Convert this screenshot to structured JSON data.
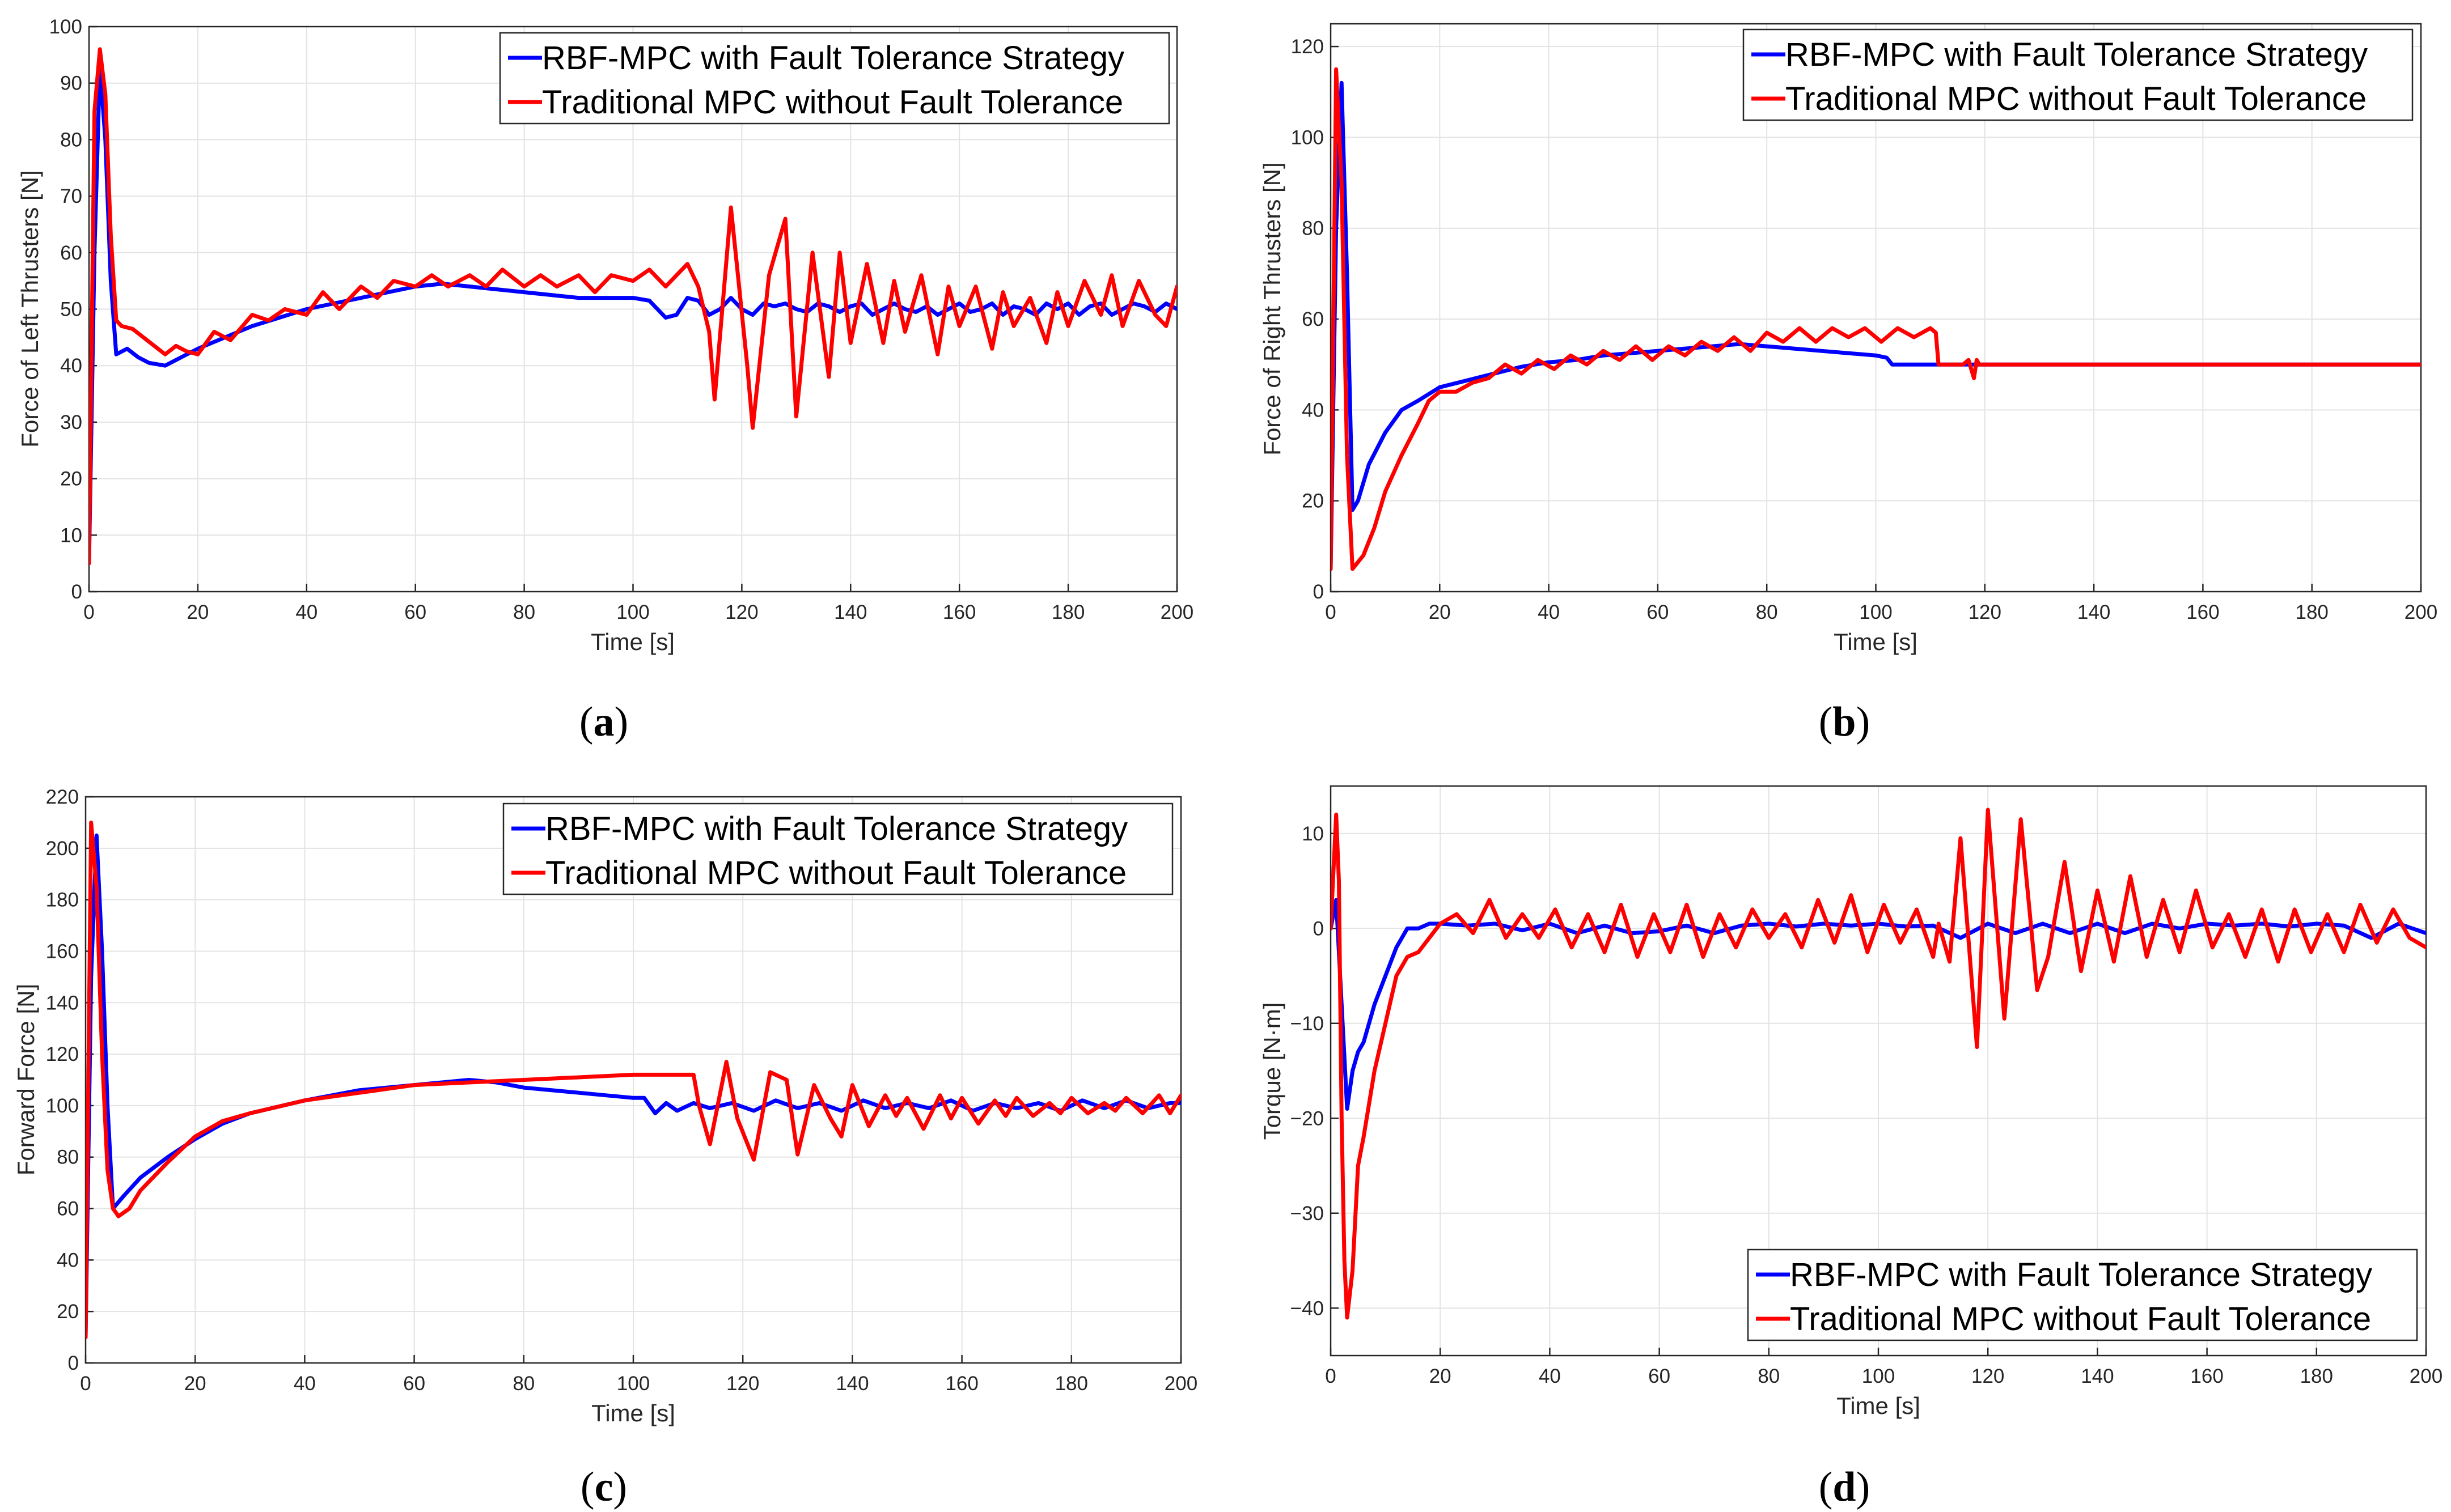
{
  "figure": {
    "background": "#ffffff"
  },
  "chart_data": [
    {
      "id": "a",
      "type": "line",
      "caption": "a",
      "xlabel": "Time [s]",
      "ylabel": "Force of Left Thrusters [N]",
      "xlim": [
        0,
        200
      ],
      "ylim": [
        0,
        100
      ],
      "xticks": [
        0,
        20,
        40,
        60,
        80,
        100,
        120,
        140,
        160,
        180,
        200
      ],
      "yticks": [
        0,
        10,
        20,
        30,
        40,
        50,
        60,
        70,
        80,
        90,
        100
      ],
      "grid": true,
      "legend_position": "top-right",
      "series": [
        {
          "name": "RBF-MPC with Fault Tolerance Strategy",
          "color": "#0000ff",
          "x": [
            0,
            1,
            2,
            3,
            4,
            5,
            7,
            9,
            11,
            14,
            17,
            20,
            25,
            30,
            35,
            40,
            45,
            50,
            55,
            60,
            65,
            70,
            75,
            80,
            85,
            90,
            95,
            100,
            103,
            106,
            108,
            110,
            112,
            114,
            116,
            118,
            120,
            122,
            124,
            126,
            128,
            130,
            132,
            134,
            136,
            138,
            140,
            142,
            144,
            146,
            148,
            150,
            152,
            154,
            156,
            158,
            160,
            162,
            164,
            166,
            168,
            170,
            172,
            174,
            176,
            178,
            180,
            182,
            184,
            186,
            188,
            190,
            192,
            194,
            196,
            198,
            200
          ],
          "y": [
            5,
            60,
            93,
            80,
            55,
            42,
            43,
            41.5,
            40.5,
            40,
            41.5,
            43,
            45,
            47,
            48.5,
            50,
            51,
            52,
            53,
            54,
            54.5,
            54,
            53.5,
            53,
            52.5,
            52,
            52,
            52,
            51.5,
            48.5,
            49,
            52,
            51.5,
            49,
            50,
            52,
            50,
            49,
            51,
            50.5,
            51,
            50,
            49.5,
            51,
            50.5,
            49.5,
            50.5,
            51,
            49,
            50,
            51,
            50,
            49.5,
            50.5,
            49,
            50,
            51,
            49.5,
            50,
            51,
            49,
            50.5,
            50,
            49,
            51,
            50,
            51,
            49,
            50.5,
            51,
            49,
            50,
            51,
            50.5,
            49.5,
            51,
            50
          ]
        },
        {
          "name": "Traditional MPC without Fault Tolerance",
          "color": "#ff0000",
          "x": [
            0,
            1,
            2,
            3,
            4,
            5,
            6,
            8,
            10,
            12,
            14,
            16,
            18,
            20,
            23,
            26,
            30,
            33,
            36,
            40,
            43,
            46,
            50,
            53,
            56,
            60,
            63,
            66,
            70,
            73,
            76,
            80,
            83,
            86,
            90,
            93,
            96,
            100,
            103,
            106,
            110,
            112,
            114,
            115,
            118,
            121,
            122,
            125,
            128,
            130,
            133,
            136,
            138,
            140,
            143,
            146,
            148,
            150,
            153,
            156,
            158,
            160,
            163,
            166,
            168,
            170,
            173,
            176,
            178,
            180,
            183,
            186,
            188,
            190,
            193,
            196,
            198,
            200
          ],
          "y": [
            5,
            85,
            96,
            88,
            63,
            48,
            47,
            46.5,
            45,
            43.5,
            42,
            43.5,
            42.5,
            42,
            46,
            44.5,
            49,
            48,
            50,
            49,
            53,
            50,
            54,
            52,
            55,
            54,
            56,
            54,
            56,
            54,
            57,
            54,
            56,
            54,
            56,
            53,
            56,
            55,
            57,
            54,
            58,
            54,
            46,
            34,
            68,
            40,
            29,
            56,
            66,
            31,
            60,
            38,
            60,
            44,
            58,
            44,
            55,
            46,
            56,
            42,
            54,
            47,
            54,
            43,
            53,
            47,
            52,
            44,
            53,
            47,
            55,
            49,
            56,
            47,
            55,
            49,
            47,
            54
          ]
        }
      ]
    },
    {
      "id": "b",
      "type": "line",
      "caption": "b",
      "xlabel": "Time [s]",
      "ylabel": "Force of Right Thrusters [N]",
      "xlim": [
        0,
        200
      ],
      "ylim": [
        0,
        125
      ],
      "xticks": [
        0,
        20,
        40,
        60,
        80,
        100,
        120,
        140,
        160,
        180,
        200
      ],
      "yticks": [
        0,
        20,
        40,
        60,
        80,
        100,
        120
      ],
      "grid": true,
      "legend_position": "top-right",
      "series": [
        {
          "name": "RBF-MPC with Fault Tolerance Strategy",
          "color": "#0000ff",
          "x": [
            0,
            1,
            2,
            3,
            4,
            5,
            7,
            10,
            13,
            16,
            20,
            25,
            30,
            35,
            40,
            45,
            50,
            55,
            60,
            65,
            70,
            75,
            80,
            85,
            90,
            95,
            100,
            102,
            103,
            105,
            110,
            112,
            112.5,
            200
          ],
          "y": [
            5,
            80,
            112,
            70,
            18,
            20,
            28,
            35,
            40,
            42,
            45,
            46.5,
            48,
            49.5,
            50.5,
            51,
            52,
            52.5,
            53,
            53.5,
            54,
            54.5,
            54,
            53.5,
            53,
            52.5,
            52,
            51.5,
            50,
            50,
            50,
            50,
            50,
            50
          ]
        },
        {
          "name": "Traditional MPC without Fault Tolerance",
          "color": "#ff0000",
          "x": [
            0,
            1,
            2,
            3,
            4,
            6,
            8,
            10,
            13,
            16,
            18,
            20,
            23,
            26,
            29,
            32,
            35,
            38,
            41,
            44,
            47,
            50,
            53,
            56,
            59,
            62,
            65,
            68,
            71,
            74,
            77,
            80,
            83,
            86,
            89,
            92,
            95,
            98,
            101,
            104,
            107,
            110,
            111,
            111.5,
            112,
            116,
            117,
            118,
            118.5,
            119,
            200
          ],
          "y": [
            5,
            115,
            90,
            30,
            5,
            8,
            14,
            22,
            30,
            37,
            42,
            44,
            44,
            46,
            47,
            50,
            48,
            51,
            49,
            52,
            50,
            53,
            51,
            54,
            51,
            54,
            52,
            55,
            53,
            56,
            53,
            57,
            55,
            58,
            55,
            58,
            56,
            58,
            55,
            58,
            56,
            58,
            57,
            50,
            50,
            50,
            51,
            47,
            51,
            50,
            50
          ]
        }
      ]
    },
    {
      "id": "c",
      "type": "line",
      "caption": "c",
      "xlabel": "Time [s]",
      "ylabel": "Forward Force [N]",
      "xlim": [
        0,
        200
      ],
      "ylim": [
        0,
        220
      ],
      "xticks": [
        0,
        20,
        40,
        60,
        80,
        100,
        120,
        140,
        160,
        180,
        200
      ],
      "yticks": [
        0,
        20,
        40,
        60,
        80,
        100,
        120,
        140,
        160,
        180,
        200,
        220
      ],
      "grid": true,
      "legend_position": "top-right",
      "series": [
        {
          "name": "RBF-MPC with Fault Tolerance Strategy",
          "color": "#0000ff",
          "x": [
            0,
            1,
            2,
            3,
            4,
            5,
            7,
            10,
            15,
            20,
            25,
            30,
            40,
            50,
            60,
            70,
            75,
            80,
            90,
            100,
            102,
            104,
            106,
            108,
            111,
            114,
            118,
            122,
            126,
            130,
            134,
            138,
            142,
            146,
            150,
            154,
            158,
            162,
            166,
            170,
            174,
            178,
            182,
            186,
            190,
            194,
            198,
            200
          ],
          "y": [
            10,
            150,
            205,
            160,
            100,
            60,
            65,
            72,
            80,
            87,
            93,
            97,
            102,
            106,
            108,
            110,
            109,
            107,
            105,
            103,
            103,
            97,
            101,
            98,
            101,
            99,
            101,
            98,
            102,
            99,
            101,
            98,
            102,
            99,
            101,
            99,
            102,
            98,
            101,
            99,
            101,
            98,
            102,
            99,
            102,
            99,
            101,
            101
          ]
        },
        {
          "name": "Traditional MPC without Fault Tolerance",
          "color": "#ff0000",
          "x": [
            0,
            1,
            2,
            3,
            4,
            5,
            6,
            8,
            10,
            15,
            20,
            25,
            30,
            40,
            50,
            60,
            70,
            80,
            90,
            100,
            105,
            111,
            112,
            114,
            117,
            119,
            122,
            125,
            128,
            130,
            133,
            136,
            138,
            140,
            143,
            146,
            148,
            150,
            153,
            156,
            158,
            160,
            163,
            166,
            168,
            170,
            173,
            176,
            178,
            180,
            183,
            186,
            188,
            190,
            193,
            196,
            198,
            200
          ],
          "y": [
            10,
            210,
            185,
            120,
            75,
            60,
            57,
            60,
            67,
            78,
            88,
            94,
            97,
            102,
            105,
            108,
            109,
            110,
            111,
            112,
            112,
            112,
            100,
            85,
            117,
            95,
            79,
            113,
            110,
            81,
            108,
            95,
            88,
            108,
            92,
            104,
            96,
            103,
            91,
            104,
            95,
            103,
            93,
            102,
            96,
            103,
            96,
            101,
            97,
            103,
            97,
            101,
            98,
            103,
            97,
            104,
            97,
            104
          ]
        }
      ]
    },
    {
      "id": "d",
      "type": "line",
      "caption": "d",
      "xlabel": "Time [s]",
      "ylabel": "Torque [N·m]",
      "xlim": [
        0,
        200
      ],
      "ylim": [
        -45,
        15
      ],
      "xticks": [
        0,
        20,
        40,
        60,
        80,
        100,
        120,
        140,
        160,
        180,
        200
      ],
      "yticks": [
        -40,
        -30,
        -20,
        -10,
        0,
        10
      ],
      "grid": true,
      "legend_position": "bottom-right",
      "series": [
        {
          "name": "RBF-MPC with Fault Tolerance Strategy",
          "color": "#0000ff",
          "x": [
            0,
            1,
            2,
            3,
            4,
            5,
            6,
            8,
            10,
            12,
            14,
            16,
            18,
            20,
            25,
            30,
            35,
            40,
            45,
            50,
            55,
            60,
            65,
            70,
            75,
            80,
            85,
            90,
            95,
            100,
            105,
            110,
            115,
            120,
            125,
            130,
            135,
            140,
            145,
            150,
            155,
            160,
            165,
            170,
            175,
            180,
            185,
            190,
            195,
            200
          ],
          "y": [
            0,
            3,
            -8,
            -19,
            -15,
            -13,
            -12,
            -8,
            -5,
            -2,
            0,
            0,
            0.5,
            0.5,
            0.3,
            0.5,
            -0.2,
            0.5,
            -0.5,
            0.3,
            -0.5,
            -0.3,
            0.3,
            -0.5,
            0.3,
            0.5,
            0.2,
            0.5,
            0.3,
            0.5,
            0.2,
            0.3,
            -1,
            0.5,
            -0.5,
            0.5,
            -0.5,
            0.5,
            -0.5,
            0.5,
            0,
            0.5,
            0.3,
            0.5,
            0.2,
            0.5,
            0.3,
            -1,
            0.5,
            -0.5
          ]
        },
        {
          "name": "Traditional MPC without Fault Tolerance",
          "color": "#ff0000",
          "x": [
            0,
            1,
            1.5,
            2,
            2.5,
            3,
            4,
            5,
            6,
            8,
            10,
            12,
            14,
            16,
            18,
            20,
            23,
            26,
            29,
            32,
            35,
            38,
            41,
            44,
            47,
            50,
            53,
            56,
            59,
            62,
            65,
            68,
            71,
            74,
            77,
            80,
            83,
            86,
            89,
            92,
            95,
            98,
            101,
            104,
            107,
            110,
            111,
            113,
            115,
            118,
            120,
            123,
            126,
            129,
            131,
            134,
            137,
            140,
            143,
            146,
            149,
            152,
            155,
            158,
            161,
            164,
            167,
            170,
            173,
            176,
            179,
            182,
            185,
            188,
            191,
            194,
            197,
            200
          ],
          "y": [
            0,
            12,
            5,
            -20,
            -35,
            -41,
            -36,
            -25,
            -22,
            -15,
            -10,
            -5,
            -3,
            -2.5,
            -1,
            0.5,
            1.5,
            -0.5,
            3,
            -1,
            1.5,
            -1,
            2,
            -2,
            1.5,
            -2.5,
            2.5,
            -3,
            1.5,
            -2.5,
            2.5,
            -3,
            1.5,
            -2,
            2,
            -1,
            1.5,
            -2,
            3,
            -1.5,
            3.5,
            -2.5,
            2.5,
            -1.5,
            2,
            -3,
            0.5,
            -3.5,
            9.5,
            -12.5,
            12.5,
            -9.5,
            11.5,
            -6.5,
            -3,
            7,
            -4.5,
            4,
            -3.5,
            5.5,
            -3,
            3,
            -2.5,
            4,
            -2,
            1.5,
            -3,
            2,
            -3.5,
            2,
            -2.5,
            1.5,
            -2.5,
            2.5,
            -1.5,
            2,
            -1,
            -2
          ]
        }
      ]
    }
  ]
}
